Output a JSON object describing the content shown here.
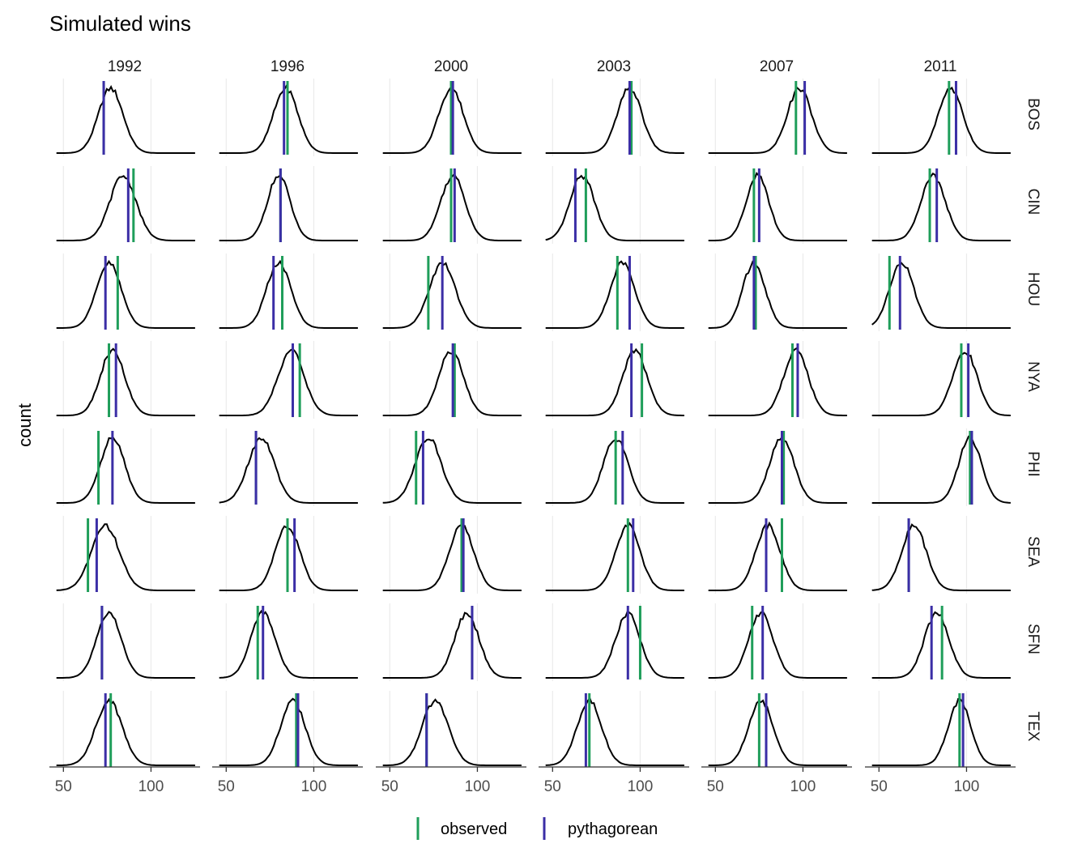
{
  "chart_data": {
    "type": "density-facet",
    "title": "Simulated wins",
    "ylabel": "count",
    "xlabel": "",
    "years": [
      "1992",
      "1996",
      "2000",
      "2003",
      "2007",
      "2011"
    ],
    "teams": [
      "BOS",
      "CIN",
      "HOU",
      "NYA",
      "PHI",
      "SEA",
      "SFN",
      "TEX"
    ],
    "xlim": [
      42,
      128
    ],
    "x_ticks": [
      "50",
      "100"
    ],
    "x_tick_values": [
      50,
      100
    ],
    "grid": true,
    "legend_position": "bottom",
    "legend": [
      {
        "name": "observed",
        "color": "#1f9e5a"
      },
      {
        "name": "pythagorean",
        "color": "#3b2ea6"
      }
    ],
    "curve_color": "#000000",
    "values": {
      "BOS": {
        "1992": {
          "observed": 73,
          "pythagorean": 73,
          "center": 77,
          "sd": 7
        },
        "1996": {
          "observed": 85,
          "pythagorean": 83,
          "center": 84,
          "sd": 7
        },
        "2000": {
          "observed": 85,
          "pythagorean": 86,
          "center": 85,
          "sd": 7
        },
        "2003": {
          "observed": 95,
          "pythagorean": 94,
          "center": 94,
          "sd": 7
        },
        "2007": {
          "observed": 96,
          "pythagorean": 101,
          "center": 98,
          "sd": 7
        },
        "2011": {
          "observed": 90,
          "pythagorean": 94,
          "center": 91,
          "sd": 7
        }
      },
      "CIN": {
        "1992": {
          "observed": 90,
          "pythagorean": 87,
          "center": 84,
          "sd": 7.5
        },
        "1996": {
          "observed": 81,
          "pythagorean": 81,
          "center": 80,
          "sd": 6.5
        },
        "2000": {
          "observed": 85,
          "pythagorean": 87,
          "center": 86,
          "sd": 7
        },
        "2003": {
          "observed": 69,
          "pythagorean": 63,
          "center": 67,
          "sd": 7
        },
        "2007": {
          "observed": 72,
          "pythagorean": 75,
          "center": 74,
          "sd": 6.5
        },
        "2011": {
          "observed": 79,
          "pythagorean": 83,
          "center": 81,
          "sd": 7
        }
      },
      "HOU": {
        "1992": {
          "observed": 81,
          "pythagorean": 74,
          "center": 76,
          "sd": 7
        },
        "1996": {
          "observed": 82,
          "pythagorean": 77,
          "center": 80,
          "sd": 7
        },
        "2000": {
          "observed": 72,
          "pythagorean": 80,
          "center": 80,
          "sd": 7.5
        },
        "2003": {
          "observed": 87,
          "pythagorean": 94,
          "center": 90,
          "sd": 7
        },
        "2007": {
          "observed": 73,
          "pythagorean": 72,
          "center": 72,
          "sd": 6.5
        },
        "2011": {
          "observed": 56,
          "pythagorean": 62,
          "center": 63,
          "sd": 7
        }
      },
      "NYA": {
        "1992": {
          "observed": 76,
          "pythagorean": 80,
          "center": 78,
          "sd": 7
        },
        "1996": {
          "observed": 92,
          "pythagorean": 88,
          "center": 87,
          "sd": 7.5
        },
        "2000": {
          "observed": 87,
          "pythagorean": 86,
          "center": 85,
          "sd": 7
        },
        "2003": {
          "observed": 101,
          "pythagorean": 95,
          "center": 97,
          "sd": 7
        },
        "2007": {
          "observed": 94,
          "pythagorean": 97,
          "center": 96,
          "sd": 7
        },
        "2011": {
          "observed": 97,
          "pythagorean": 101,
          "center": 99,
          "sd": 7
        }
      },
      "PHI": {
        "1992": {
          "observed": 70,
          "pythagorean": 78,
          "center": 78,
          "sd": 7
        },
        "1996": {
          "observed": 67,
          "pythagorean": 67,
          "center": 70,
          "sd": 7.5
        },
        "2000": {
          "observed": 65,
          "pythagorean": 69,
          "center": 72,
          "sd": 7.5
        },
        "2003": {
          "observed": 86,
          "pythagorean": 90,
          "center": 86,
          "sd": 7
        },
        "2007": {
          "observed": 89,
          "pythagorean": 88,
          "center": 88,
          "sd": 7
        },
        "2011": {
          "observed": 102,
          "pythagorean": 103,
          "center": 102,
          "sd": 6.5
        }
      },
      "SEA": {
        "1992": {
          "observed": 64,
          "pythagorean": 69,
          "center": 74,
          "sd": 8
        },
        "1996": {
          "observed": 85,
          "pythagorean": 89,
          "center": 85,
          "sd": 7
        },
        "2000": {
          "observed": 91,
          "pythagorean": 92,
          "center": 91,
          "sd": 7
        },
        "2003": {
          "observed": 93,
          "pythagorean": 96,
          "center": 93,
          "sd": 7
        },
        "2007": {
          "observed": 88,
          "pythagorean": 79,
          "center": 80,
          "sd": 7
        },
        "2011": {
          "observed": 67,
          "pythagorean": 67,
          "center": 70,
          "sd": 7
        }
      },
      "SFN": {
        "1992": {
          "observed": 72,
          "pythagorean": 72,
          "center": 76,
          "sd": 7
        },
        "1996": {
          "observed": 68,
          "pythagorean": 71,
          "center": 71,
          "sd": 7
        },
        "2000": {
          "observed": 97,
          "pythagorean": 97,
          "center": 94,
          "sd": 7
        },
        "2003": {
          "observed": 100,
          "pythagorean": 93,
          "center": 93,
          "sd": 7
        },
        "2007": {
          "observed": 71,
          "pythagorean": 77,
          "center": 76,
          "sd": 7
        },
        "2011": {
          "observed": 86,
          "pythagorean": 80,
          "center": 83,
          "sd": 7
        }
      },
      "TEX": {
        "1992": {
          "observed": 77,
          "pythagorean": 74,
          "center": 76,
          "sd": 7.5
        },
        "1996": {
          "observed": 90,
          "pythagorean": 91,
          "center": 88,
          "sd": 7
        },
        "2000": {
          "observed": 71,
          "pythagorean": 71,
          "center": 76,
          "sd": 7.5
        },
        "2003": {
          "observed": 71,
          "pythagorean": 69,
          "center": 71,
          "sd": 7
        },
        "2007": {
          "observed": 75,
          "pythagorean": 79,
          "center": 76,
          "sd": 7
        },
        "2011": {
          "observed": 96,
          "pythagorean": 98,
          "center": 96,
          "sd": 6.5
        }
      }
    }
  }
}
